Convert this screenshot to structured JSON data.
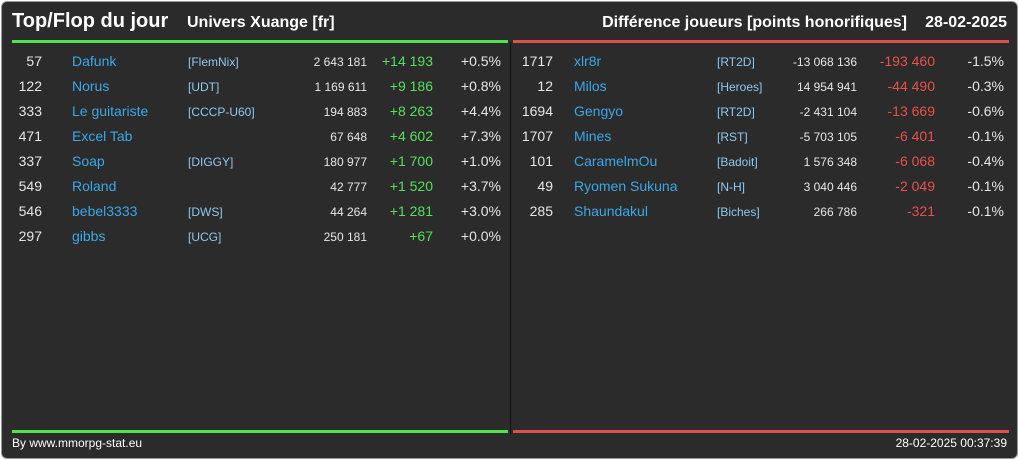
{
  "header": {
    "title": "Top/Flop du jour",
    "universe": "Univers Xuange [fr]",
    "subtitle": "Différence joueurs [points honorifiques]",
    "date": "28-02-2025"
  },
  "colors": {
    "positive": "#55e05a",
    "negative": "#e8504a",
    "link": "#3aa8e8"
  },
  "top": [
    {
      "rank": "57",
      "name": "Dafunk",
      "alliance": "[FlemNix]",
      "points": "2 643 181",
      "diff": "+14 193",
      "pct": "+0.5%"
    },
    {
      "rank": "122",
      "name": "Norus",
      "alliance": "[UDT]",
      "points": "1 169 611",
      "diff": "+9 186",
      "pct": "+0.8%"
    },
    {
      "rank": "333",
      "name": "Le guitariste",
      "alliance": "[CCCP-U60]",
      "points": "194 883",
      "diff": "+8 263",
      "pct": "+4.4%"
    },
    {
      "rank": "471",
      "name": "Excel Tab",
      "alliance": "",
      "points": "67 648",
      "diff": "+4 602",
      "pct": "+7.3%"
    },
    {
      "rank": "337",
      "name": "Soap",
      "alliance": "[DIGGY]",
      "points": "180 977",
      "diff": "+1 700",
      "pct": "+1.0%"
    },
    {
      "rank": "549",
      "name": "Roland",
      "alliance": "",
      "points": "42 777",
      "diff": "+1 520",
      "pct": "+3.7%"
    },
    {
      "rank": "546",
      "name": "bebel3333",
      "alliance": "[DWS]",
      "points": "44 264",
      "diff": "+1 281",
      "pct": "+3.0%"
    },
    {
      "rank": "297",
      "name": "gibbs",
      "alliance": "[UCG]",
      "points": "250 181",
      "diff": "+67",
      "pct": "+0.0%"
    }
  ],
  "flop": [
    {
      "rank": "1717",
      "name": "xlr8r",
      "alliance": "[RT2D]",
      "points": "-13 068 136",
      "diff": "-193 460",
      "pct": "-1.5%"
    },
    {
      "rank": "12",
      "name": "Milos",
      "alliance": "[Heroes]",
      "points": "14 954 941",
      "diff": "-44 490",
      "pct": "-0.3%"
    },
    {
      "rank": "1694",
      "name": "Gengyo",
      "alliance": "[RT2D]",
      "points": "-2 431 104",
      "diff": "-13 669",
      "pct": "-0.6%"
    },
    {
      "rank": "1707",
      "name": "Mines",
      "alliance": "[RST]",
      "points": "-5 703 105",
      "diff": "-6 401",
      "pct": "-0.1%"
    },
    {
      "rank": "101",
      "name": "CaramelmOu",
      "alliance": "[Badoit]",
      "points": "1 576 348",
      "diff": "-6 068",
      "pct": "-0.4%"
    },
    {
      "rank": "49",
      "name": "Ryomen Sukuna",
      "alliance": "[N-H]",
      "points": "3 040 446",
      "diff": "-2 049",
      "pct": "-0.1%"
    },
    {
      "rank": "285",
      "name": "Shaundakul",
      "alliance": "[Biches]",
      "points": "266 786",
      "diff": "-321",
      "pct": "-0.1%"
    }
  ],
  "footer": {
    "source": "By www.mmorpg-stat.eu",
    "timestamp": "28-02-2025 00:37:39"
  }
}
